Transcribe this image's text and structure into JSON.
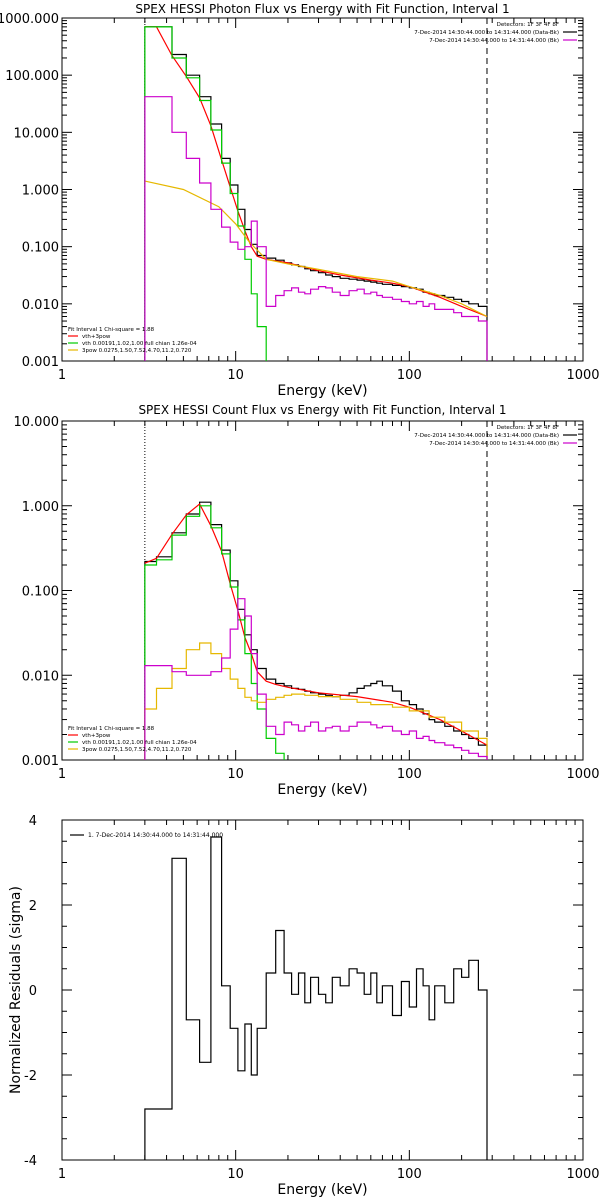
{
  "chart_data": [
    {
      "type": "line",
      "title": "SPEX HESSI Photon Flux vs Energy with Fit Function, Interval 1",
      "xlabel": "Energy (keV)",
      "ylabel": "",
      "xscale": "log",
      "yscale": "log",
      "xlim": [
        1,
        1000
      ],
      "ylim": [
        0.001,
        1000
      ],
      "x_ticks": [
        "1",
        "10",
        "100",
        "1000"
      ],
      "y_ticks": [
        "1000.000",
        "100.000",
        "10.000",
        "1.000",
        "0.100",
        "0.010",
        "0.001"
      ],
      "vlines": [
        {
          "x": 3,
          "style": "dotted"
        },
        {
          "x": 280,
          "style": "dashed"
        }
      ],
      "legend_topright": [
        {
          "text": "Detectors: 1F 3F 4F 8F",
          "color": "#000000"
        },
        {
          "text": "7-Dec-2014 14:30:44.000 to 14:31:44.000 (Data-Bk)",
          "color": "#000000"
        },
        {
          "text": "7-Dec-2014 14:30:44.000 to 14:31:44.000 (Bk)",
          "color": "#cc00cc"
        }
      ],
      "legend_bottomleft": [
        {
          "text": "Fit Interval 1     Chi-square = 1.88",
          "color": "#000000"
        },
        {
          "text": "vth+3pow",
          "color": "#ff0000"
        },
        {
          "text": "vth 0.00191,1.02,1.00  full chian 1.26e-04",
          "color": "#00cc00"
        },
        {
          "text": "3pow 0.0275,1.50,7.52,4.70,11.2,0.720",
          "color": "#e6b800"
        }
      ],
      "series": [
        {
          "color": "#000000",
          "edges": [
            3,
            3.5,
            4.3,
            5.2,
            6.2,
            7.2,
            8.3,
            9.3,
            10.3,
            11.3,
            12.3,
            13.3,
            15,
            17,
            19,
            21,
            23,
            25,
            27,
            30,
            33,
            36,
            40,
            45,
            50,
            55,
            60,
            65,
            70,
            80,
            90,
            100,
            110,
            120,
            130,
            140,
            160,
            180,
            200,
            220,
            250,
            280
          ],
          "values": [
            700,
            700,
            230,
            100,
            42,
            14,
            3.5,
            1.2,
            0.45,
            0.2,
            0.11,
            0.07,
            0.063,
            0.058,
            0.052,
            0.048,
            0.045,
            0.041,
            0.038,
            0.035,
            0.032,
            0.03,
            0.028,
            0.027,
            0.026,
            0.025,
            0.024,
            0.023,
            0.022,
            0.021,
            0.02,
            0.019,
            0.018,
            0.016,
            0.015,
            0.014,
            0.013,
            0.012,
            0.011,
            0.01,
            0.009
          ]
        },
        {
          "color": "#ff0000",
          "x": [
            3,
            3.5,
            4.3,
            5.2,
            6.2,
            7.2,
            8.3,
            9.3,
            10.3,
            11.3,
            12.3,
            13.3,
            15,
            20,
            30,
            40,
            60,
            80,
            100,
            150,
            200,
            280
          ],
          "values": [
            700,
            700,
            220,
            95,
            40,
            13,
            3.3,
            1.1,
            0.42,
            0.19,
            0.1,
            0.068,
            0.06,
            0.052,
            0.038,
            0.032,
            0.026,
            0.023,
            0.02,
            0.013,
            0.009,
            0.006
          ]
        },
        {
          "color": "#00cc00",
          "edges": [
            3,
            3.5,
            4.3,
            5.2,
            6.2,
            7.2,
            8.3,
            9.3,
            10.3,
            11.3,
            12.3,
            13.3,
            15
          ],
          "values": [
            700,
            700,
            200,
            90,
            36,
            11,
            2.9,
            0.85,
            0.23,
            0.06,
            0.015,
            0.004
          ]
        },
        {
          "color": "#e6b800",
          "x": [
            3,
            5,
            8,
            10,
            12,
            15,
            20,
            30,
            50,
            80,
            100,
            150,
            200,
            280
          ],
          "values": [
            1.4,
            1.0,
            0.5,
            0.25,
            0.12,
            0.06,
            0.05,
            0.04,
            0.03,
            0.025,
            0.02,
            0.014,
            0.01,
            0.006
          ]
        },
        {
          "color": "#cc00cc",
          "edges": [
            3,
            4.3,
            5.2,
            6.2,
            7.2,
            8.3,
            9.3,
            10.3,
            11.3,
            12.3,
            13.3,
            15,
            17,
            19,
            21,
            23,
            25,
            27,
            30,
            33,
            36,
            40,
            45,
            50,
            55,
            60,
            65,
            70,
            80,
            90,
            100,
            110,
            120,
            130,
            140,
            160,
            180,
            200,
            220,
            250,
            280
          ],
          "values": [
            42,
            10,
            3.5,
            1.3,
            0.45,
            0.22,
            0.12,
            0.09,
            0.1,
            0.28,
            0.1,
            0.009,
            0.014,
            0.017,
            0.019,
            0.016,
            0.015,
            0.018,
            0.02,
            0.019,
            0.016,
            0.014,
            0.017,
            0.018,
            0.015,
            0.016,
            0.014,
            0.013,
            0.012,
            0.011,
            0.01,
            0.011,
            0.009,
            0.01,
            0.008,
            0.008,
            0.007,
            0.006,
            0.006,
            0.005
          ]
        }
      ]
    },
    {
      "type": "line",
      "title": "SPEX HESSI Count Flux vs Energy with Fit Function, Interval 1",
      "xlabel": "Energy (keV)",
      "ylabel": "",
      "xscale": "log",
      "yscale": "log",
      "xlim": [
        1,
        1000
      ],
      "ylim": [
        0.001,
        10
      ],
      "x_ticks": [
        "1",
        "10",
        "100",
        "1000"
      ],
      "y_ticks": [
        "10.000",
        "1.000",
        "0.100",
        "0.010",
        "0.001"
      ],
      "vlines": [
        {
          "x": 3,
          "style": "dotted"
        },
        {
          "x": 280,
          "style": "dashed"
        }
      ],
      "legend_topright": [
        {
          "text": "Detectors: 1F 3F 4F 8F",
          "color": "#000000"
        },
        {
          "text": "7-Dec-2014 14:30:44.000 to 14:31:44.000 (Data-Bk)",
          "color": "#000000"
        },
        {
          "text": "7-Dec-2014 14:30:44.000 to 14:31:44.000 (Bk)",
          "color": "#cc00cc"
        }
      ],
      "legend_bottomleft": [
        {
          "text": "Fit Interval 1     Chi-square = 1.88",
          "color": "#000000"
        },
        {
          "text": "vth+3pow",
          "color": "#ff0000"
        },
        {
          "text": "vth 0.00191,1.02,1.00  full chian 1.26e-04",
          "color": "#00cc00"
        },
        {
          "text": "3pow 0.0275,1.50,7.52,4.70,11.2,0.720",
          "color": "#e6b800"
        }
      ],
      "series": [
        {
          "color": "#000000",
          "edges": [
            3,
            3.5,
            4.3,
            5.2,
            6.2,
            7.2,
            8.3,
            9.3,
            10.3,
            11.3,
            12.3,
            13.3,
            15,
            17,
            19,
            21,
            23,
            25,
            27,
            30,
            33,
            36,
            40,
            45,
            50,
            55,
            60,
            65,
            70,
            80,
            90,
            100,
            110,
            120,
            130,
            140,
            160,
            180,
            200,
            220,
            250,
            280
          ],
          "values": [
            0.22,
            0.25,
            0.48,
            0.8,
            1.1,
            0.6,
            0.3,
            0.13,
            0.06,
            0.03,
            0.02,
            0.012,
            0.009,
            0.008,
            0.0075,
            0.007,
            0.0068,
            0.0065,
            0.0062,
            0.006,
            0.0058,
            0.0056,
            0.0058,
            0.0062,
            0.007,
            0.0075,
            0.008,
            0.0085,
            0.0075,
            0.0065,
            0.005,
            0.0045,
            0.004,
            0.0035,
            0.003,
            0.0028,
            0.0025,
            0.0022,
            0.002,
            0.0018,
            0.0015
          ]
        },
        {
          "color": "#ff0000",
          "x": [
            3,
            3.5,
            4.3,
            5.2,
            6.2,
            7.2,
            8.3,
            9.3,
            10.3,
            11.3,
            12.3,
            13.3,
            15,
            17,
            20,
            30,
            50,
            80,
            100,
            150,
            200,
            280
          ],
          "values": [
            0.21,
            0.24,
            0.46,
            0.78,
            1.05,
            0.58,
            0.29,
            0.12,
            0.058,
            0.028,
            0.018,
            0.011,
            0.0085,
            0.0078,
            0.0072,
            0.0062,
            0.0056,
            0.0048,
            0.0042,
            0.003,
            0.0022,
            0.0015
          ]
        },
        {
          "color": "#00cc00",
          "edges": [
            3,
            3.5,
            4.3,
            5.2,
            6.2,
            7.2,
            8.3,
            9.3,
            10.3,
            11.3,
            12.3,
            13.3,
            15,
            17,
            19
          ],
          "values": [
            0.2,
            0.23,
            0.45,
            0.75,
            1.0,
            0.55,
            0.27,
            0.11,
            0.045,
            0.018,
            0.008,
            0.004,
            0.0018,
            0.0012
          ]
        },
        {
          "color": "#e6b800",
          "edges": [
            3,
            3.5,
            4.3,
            5.2,
            6.2,
            7.2,
            8.3,
            9.3,
            10.3,
            11.3,
            12.3,
            13.3,
            15,
            17,
            19,
            21,
            25,
            30,
            40,
            50,
            60,
            80,
            100,
            130,
            160,
            200,
            250,
            280
          ],
          "values": [
            0.004,
            0.007,
            0.012,
            0.02,
            0.024,
            0.018,
            0.012,
            0.009,
            0.007,
            0.0055,
            0.005,
            0.0048,
            0.0052,
            0.0055,
            0.0058,
            0.006,
            0.0058,
            0.0056,
            0.0052,
            0.0048,
            0.0045,
            0.0042,
            0.0038,
            0.0032,
            0.0028,
            0.0022,
            0.0018
          ]
        },
        {
          "color": "#cc00cc",
          "edges": [
            3,
            4.3,
            5.2,
            6.2,
            7.2,
            8.3,
            9.3,
            10.3,
            11.3,
            12.3,
            13.3,
            15,
            17,
            19,
            21,
            23,
            25,
            27,
            30,
            33,
            36,
            40,
            45,
            50,
            55,
            60,
            65,
            70,
            80,
            90,
            100,
            110,
            120,
            130,
            140,
            160,
            180,
            200,
            220,
            250,
            280
          ],
          "values": [
            0.013,
            0.011,
            0.01,
            0.01,
            0.011,
            0.016,
            0.035,
            0.08,
            0.05,
            0.018,
            0.006,
            0.0025,
            0.002,
            0.0028,
            0.0026,
            0.0022,
            0.0025,
            0.0028,
            0.0022,
            0.0024,
            0.0025,
            0.0022,
            0.0025,
            0.0028,
            0.0028,
            0.0026,
            0.0024,
            0.0025,
            0.0022,
            0.002,
            0.0022,
            0.0018,
            0.0019,
            0.0017,
            0.0016,
            0.0015,
            0.0014,
            0.0013,
            0.0012,
            0.0011
          ]
        }
      ]
    },
    {
      "type": "line",
      "title": "",
      "xlabel": "Energy (keV)",
      "ylabel": "Normalized Residuals (sigma)",
      "xscale": "log",
      "yscale": "linear",
      "xlim": [
        1,
        1000
      ],
      "ylim": [
        -4,
        4
      ],
      "x_ticks": [
        "1",
        "10",
        "100",
        "1000"
      ],
      "y_ticks": [
        "4",
        "2",
        "0",
        "-2",
        "-4"
      ],
      "legend_topleft": [
        {
          "text": "1.  7-Dec-2014 14:30:44.000 to 14:31:44.000",
          "color": "#000000"
        }
      ],
      "series": [
        {
          "color": "#000000",
          "edges": [
            3,
            4.3,
            5.2,
            6.2,
            7.2,
            8.3,
            9.3,
            10.3,
            11.3,
            12.3,
            13.3,
            15,
            17,
            19,
            21,
            23,
            25,
            27,
            30,
            33,
            36,
            40,
            45,
            50,
            55,
            60,
            65,
            70,
            80,
            90,
            100,
            110,
            120,
            130,
            140,
            160,
            180,
            200,
            220,
            250,
            280
          ],
          "values": [
            -2.8,
            3.1,
            -0.7,
            -1.7,
            3.6,
            0.1,
            -0.9,
            -1.9,
            -0.8,
            -2.0,
            -0.9,
            0.4,
            1.4,
            0.4,
            -0.1,
            0.4,
            -0.3,
            0.3,
            -0.1,
            -0.3,
            0.3,
            0.1,
            0.5,
            0.4,
            -0.1,
            0.4,
            -0.3,
            0.1,
            -0.6,
            0.2,
            -0.4,
            0.5,
            0.1,
            -0.7,
            0.1,
            -0.3,
            0.5,
            0.3,
            0.7,
            0.0
          ]
        }
      ]
    }
  ]
}
